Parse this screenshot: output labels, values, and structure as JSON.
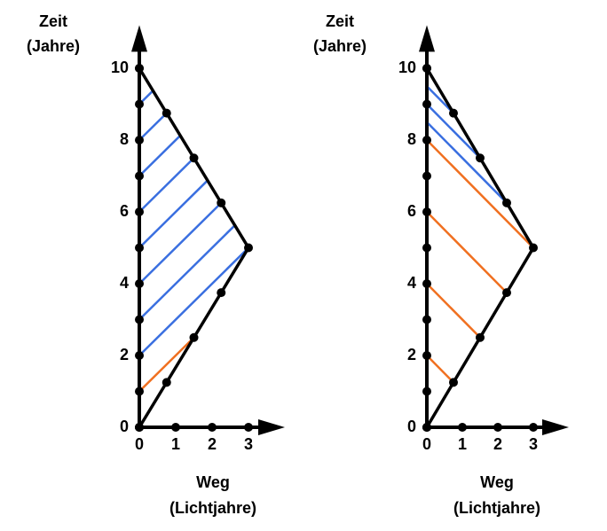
{
  "chart_data": [
    {
      "type": "spacetime",
      "y_label": [
        "Zeit",
        "(Jahre)"
      ],
      "x_label": [
        "Weg",
        "(Lichtjahre)"
      ],
      "xlim": [
        0,
        4
      ],
      "ylim": [
        0,
        11.2
      ],
      "xticks": [
        0,
        1,
        2,
        3
      ],
      "yticks": [
        0,
        2,
        4,
        6,
        8,
        10
      ],
      "series": [
        {
          "color": "#000000",
          "x": [
            0,
            0,
            0,
            0,
            0,
            0,
            0,
            0,
            0,
            0,
            0
          ],
          "values": [
            0,
            1,
            2,
            3,
            4,
            5,
            6,
            7,
            8,
            9,
            10
          ]
        },
        {
          "color": "#000000",
          "x": [
            0,
            0.75,
            1.5,
            2.25,
            3,
            2.25,
            1.5,
            0.75,
            0
          ],
          "values": [
            0,
            1.25,
            2.5,
            3.75,
            5,
            6.25,
            7.5,
            8.75,
            10
          ]
        }
      ],
      "signals": [
        {
          "color": "#f07020",
          "x": [
            0,
            1.5
          ],
          "values": [
            1,
            2.5
          ]
        },
        {
          "color": "#3a6fe0",
          "x": [
            0,
            3
          ],
          "values": [
            2,
            5
          ]
        },
        {
          "color": "#3a6fe0",
          "x": [
            0,
            2.625
          ],
          "values": [
            3,
            5.625
          ]
        },
        {
          "color": "#3a6fe0",
          "x": [
            0,
            2.25
          ],
          "values": [
            4,
            6.25
          ]
        },
        {
          "color": "#3a6fe0",
          "x": [
            0,
            1.875
          ],
          "values": [
            5,
            6.875
          ]
        },
        {
          "color": "#3a6fe0",
          "x": [
            0,
            1.5
          ],
          "values": [
            6,
            7.5
          ]
        },
        {
          "color": "#3a6fe0",
          "x": [
            0,
            1.125
          ],
          "values": [
            7,
            8.125
          ]
        },
        {
          "color": "#3a6fe0",
          "x": [
            0,
            0.75
          ],
          "values": [
            8,
            8.75
          ]
        },
        {
          "color": "#3a6fe0",
          "x": [
            0,
            0.375
          ],
          "values": [
            9,
            9.375
          ]
        }
      ]
    },
    {
      "type": "spacetime",
      "y_label": [
        "Zeit",
        "(Jahre)"
      ],
      "x_label": [
        "Weg",
        "(Lichtjahre)"
      ],
      "xlim": [
        0,
        4
      ],
      "ylim": [
        0,
        11.2
      ],
      "xticks": [
        0,
        1,
        2,
        3
      ],
      "yticks": [
        0,
        2,
        4,
        6,
        8,
        10
      ],
      "series": [
        {
          "color": "#000000",
          "x": [
            0,
            0,
            0,
            0,
            0,
            0,
            0,
            0,
            0,
            0,
            0
          ],
          "values": [
            0,
            1,
            2,
            3,
            4,
            5,
            6,
            7,
            8,
            9,
            10
          ]
        },
        {
          "color": "#000000",
          "x": [
            0,
            0.75,
            1.5,
            2.25,
            3,
            2.25,
            1.5,
            0.75,
            0
          ],
          "values": [
            0,
            1.25,
            2.5,
            3.75,
            5,
            6.25,
            7.5,
            8.75,
            10
          ]
        }
      ],
      "signals": [
        {
          "color": "#f07020",
          "x": [
            0.75,
            0
          ],
          "values": [
            1.25,
            2
          ]
        },
        {
          "color": "#f07020",
          "x": [
            1.5,
            0
          ],
          "values": [
            2.5,
            4
          ]
        },
        {
          "color": "#f07020",
          "x": [
            2.25,
            0
          ],
          "values": [
            3.75,
            6
          ]
        },
        {
          "color": "#f07020",
          "x": [
            3,
            0
          ],
          "values": [
            5,
            8
          ]
        },
        {
          "color": "#3a6fe0",
          "x": [
            2.25,
            0
          ],
          "values": [
            6.25,
            8.5
          ]
        },
        {
          "color": "#3a6fe0",
          "x": [
            1.5,
            0
          ],
          "values": [
            7.5,
            9
          ]
        },
        {
          "color": "#3a6fe0",
          "x": [
            0.75,
            0
          ],
          "values": [
            8.75,
            9.5
          ]
        }
      ]
    }
  ]
}
